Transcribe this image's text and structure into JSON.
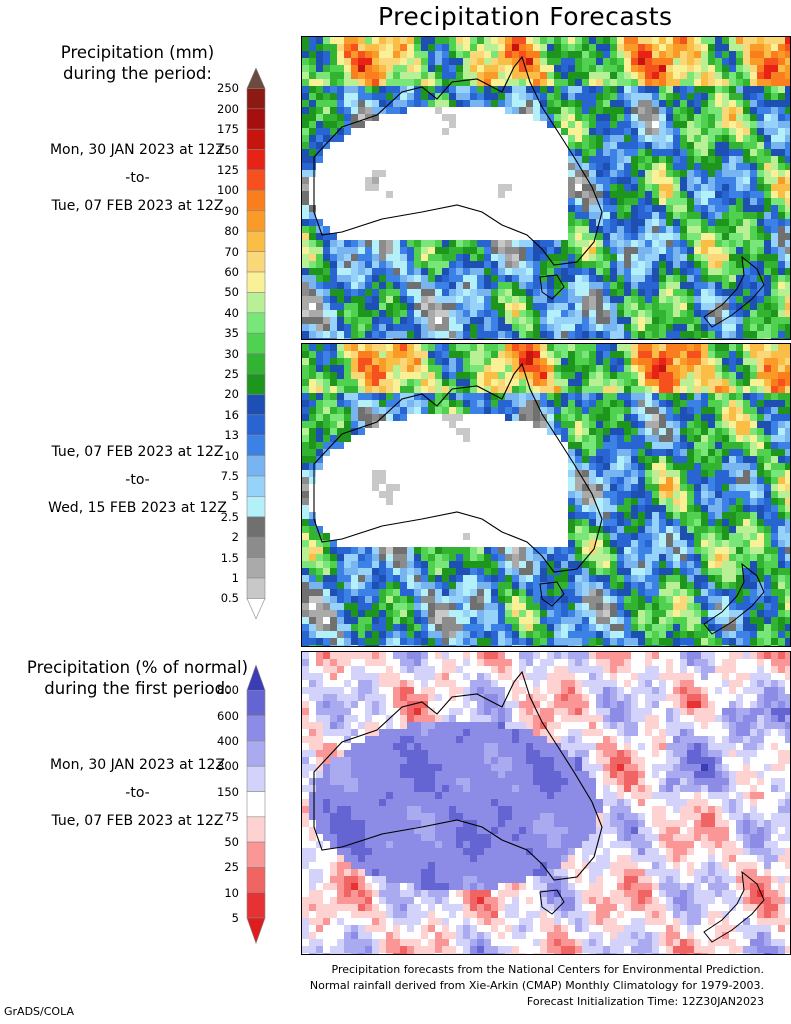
{
  "title": "Precipitation Forecasts",
  "top_section": {
    "header_line1": "Precipitation (mm)",
    "header_line2": "during the period:"
  },
  "period1": {
    "start": "Mon, 30 JAN 2023 at 12Z",
    "sep": "-to-",
    "end": "Tue, 07 FEB 2023 at 12Z"
  },
  "period2": {
    "start": "Tue, 07 FEB 2023 at 12Z",
    "sep": "-to-",
    "end": "Wed, 15 FEB 2023 at 12Z"
  },
  "bottom_section": {
    "header_line1": "Precipitation (% of normal)",
    "header_line2": "during the first period:",
    "start": "Mon, 30 JAN 2023 at 12Z",
    "sep": "-to-",
    "end": "Tue, 07 FEB 2023 at 12Z"
  },
  "mm_scale": {
    "labels": [
      "250",
      "200",
      "175",
      "150",
      "125",
      "100",
      "90",
      "80",
      "70",
      "60",
      "50",
      "40",
      "35",
      "30",
      "25",
      "20",
      "16",
      "13",
      "10",
      "7.5",
      "5",
      "2.5",
      "2",
      "1.5",
      "1",
      "0.5"
    ],
    "colors": [
      "#6b4a42",
      "#8c1a14",
      "#a50f0f",
      "#c8140f",
      "#e62314",
      "#f5501e",
      "#fa7d1e",
      "#fa9b28",
      "#fabe46",
      "#fad778",
      "#faf096",
      "#b9f096",
      "#78e678",
      "#50d250",
      "#32b432",
      "#1e961e",
      "#1e50b4",
      "#2864d2",
      "#3c82e6",
      "#78b4f0",
      "#96d2fa",
      "#b4f0fa",
      "#707070",
      "#8c8c8c",
      "#aaaaaa",
      "#c8c8c8",
      "#ffffff"
    ]
  },
  "pct_scale": {
    "labels": [
      "800",
      "600",
      "400",
      "300",
      "150",
      "75",
      "50",
      "25",
      "10",
      "5"
    ],
    "colors": [
      "#3c3cb4",
      "#6464d2",
      "#8c8ce6",
      "#aaaaf0",
      "#d2d2fa",
      "#ffffff",
      "#ffd2d2",
      "#fa9696",
      "#f06464",
      "#e63232",
      "#dc1e1e"
    ]
  },
  "footer": {
    "line1": "Precipitation forecasts from the National Centers for Environmental Prediction.",
    "line2": "Normal rainfall derived from Xie-Arkin (CMAP) Monthly Climatology for 1979-2003.",
    "line3": "Forecast Initialization Time: 12Z30JAN2023"
  },
  "credit": "GrADS/COLA"
}
